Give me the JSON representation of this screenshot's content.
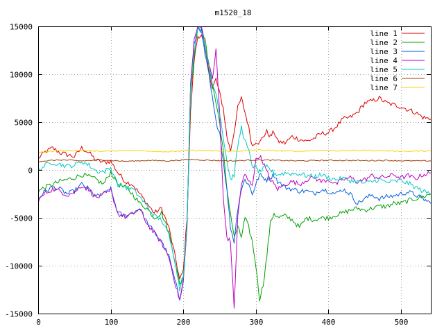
{
  "chart_data": {
    "type": "line",
    "title": "m1520_18",
    "xlabel": "",
    "ylabel": "",
    "xlim": [
      0,
      541
    ],
    "ylim": [
      -15000,
      15000
    ],
    "xticks": [
      0,
      100,
      200,
      300,
      400,
      500
    ],
    "yticks": [
      -15000,
      -10000,
      -5000,
      0,
      5000,
      10000,
      15000
    ],
    "grid": true,
    "legend_position": "top-right",
    "series": [
      {
        "name": "line 1",
        "color": "#dd0000",
        "x": [
          0,
          10,
          20,
          30,
          40,
          50,
          60,
          70,
          80,
          90,
          100,
          110,
          120,
          130,
          140,
          150,
          160,
          170,
          180,
          190,
          195,
          200,
          205,
          210,
          215,
          220,
          225,
          230,
          235,
          240,
          245,
          250,
          255,
          260,
          265,
          270,
          275,
          280,
          285,
          290,
          295,
          300,
          305,
          310,
          315,
          320,
          325,
          330,
          340,
          350,
          360,
          370,
          380,
          390,
          400,
          410,
          420,
          430,
          440,
          450,
          460,
          470,
          480,
          490,
          500,
          510,
          520,
          530,
          541
        ],
        "y": [
          1200,
          1900,
          2300,
          1800,
          1600,
          1400,
          2300,
          1800,
          1000,
          800,
          900,
          -300,
          -1200,
          -1500,
          -2500,
          -3500,
          -4500,
          -4000,
          -6000,
          -9500,
          -11500,
          -10500,
          -5000,
          6000,
          11500,
          14000,
          14000,
          12500,
          10500,
          8500,
          9500,
          8000,
          6500,
          3500,
          2000,
          4000,
          6500,
          7500,
          6000,
          4500,
          2500,
          3000,
          2800,
          3500,
          4000,
          3500,
          4000,
          3000,
          2800,
          3500,
          3200,
          3000,
          3300,
          3800,
          3900,
          4500,
          5300,
          5500,
          6000,
          7000,
          7200,
          7500,
          7000,
          6800,
          6600,
          6300,
          6000,
          5500,
          5300
        ]
      },
      {
        "name": "line 2",
        "color": "#00a000",
        "x": [
          0,
          10,
          20,
          30,
          40,
          50,
          60,
          70,
          80,
          90,
          100,
          110,
          120,
          130,
          140,
          150,
          160,
          170,
          180,
          190,
          195,
          200,
          205,
          210,
          215,
          220,
          225,
          230,
          235,
          240,
          245,
          250,
          255,
          260,
          265,
          270,
          275,
          280,
          285,
          290,
          295,
          300,
          305,
          310,
          315,
          320,
          325,
          330,
          340,
          350,
          360,
          370,
          380,
          390,
          400,
          410,
          420,
          430,
          440,
          450,
          460,
          470,
          480,
          490,
          500,
          510,
          520,
          530,
          541
        ],
        "y": [
          -2200,
          -1800,
          -1500,
          -1200,
          -1000,
          -800,
          -500,
          -700,
          -1000,
          -1500,
          -200,
          -1500,
          -1800,
          -2500,
          -3500,
          -4000,
          -5000,
          -4500,
          -6500,
          -10000,
          -12000,
          -11000,
          -6000,
          8000,
          12000,
          15000,
          15000,
          13500,
          11000,
          9000,
          7000,
          5000,
          2000,
          -2000,
          -4500,
          -7000,
          -6000,
          -7000,
          -5000,
          -6000,
          -7500,
          -10000,
          -13500,
          -12000,
          -9000,
          -5500,
          -4500,
          -5000,
          -4800,
          -5200,
          -6000,
          -5000,
          -5200,
          -5000,
          -5000,
          -4700,
          -4500,
          -4200,
          -4000,
          -4200,
          -4000,
          -3800,
          -3800,
          -3500,
          -3500,
          -3200,
          -3000,
          -2800,
          -2500
        ]
      },
      {
        "name": "line 3",
        "color": "#0060dd",
        "x": [
          0,
          10,
          20,
          30,
          40,
          50,
          60,
          70,
          80,
          90,
          100,
          110,
          120,
          130,
          140,
          150,
          160,
          170,
          180,
          190,
          195,
          200,
          205,
          210,
          215,
          220,
          225,
          230,
          235,
          240,
          245,
          250,
          255,
          260,
          265,
          270,
          275,
          280,
          285,
          290,
          295,
          300,
          305,
          310,
          315,
          320,
          325,
          330,
          340,
          350,
          360,
          370,
          380,
          390,
          400,
          410,
          420,
          430,
          440,
          450,
          460,
          470,
          480,
          490,
          500,
          510,
          520,
          530,
          541
        ],
        "y": [
          -3000,
          -2200,
          -1800,
          -2000,
          -2500,
          -2200,
          -1500,
          -2000,
          -2800,
          -2500,
          -2000,
          -4500,
          -4800,
          -4500,
          -4000,
          -5500,
          -6500,
          -7500,
          -9000,
          -12000,
          -13500,
          -11500,
          -6000,
          9000,
          13000,
          15000,
          14500,
          12000,
          10000,
          7500,
          5000,
          4000,
          1000,
          -2000,
          -6000,
          -7500,
          -4000,
          -2000,
          -1000,
          -1500,
          -2500,
          -1500,
          -500,
          -800,
          -1000,
          -800,
          -500,
          -1200,
          -1800,
          -2000,
          -2200,
          -2200,
          -2500,
          -2000,
          -2200,
          -2500,
          -2000,
          -2500,
          -3500,
          -3000,
          -2600,
          -3000,
          -2800,
          -2700,
          -2500,
          -2300,
          -2600,
          -3000,
          -3500
        ]
      },
      {
        "name": "line 4",
        "color": "#c000c0",
        "x": [
          0,
          10,
          20,
          30,
          40,
          50,
          60,
          70,
          80,
          90,
          100,
          110,
          120,
          130,
          140,
          150,
          160,
          170,
          180,
          190,
          195,
          200,
          205,
          210,
          215,
          220,
          225,
          230,
          235,
          240,
          245,
          250,
          255,
          260,
          265,
          270,
          275,
          280,
          285,
          290,
          295,
          300,
          305,
          310,
          315,
          320,
          325,
          330,
          340,
          350,
          360,
          370,
          380,
          390,
          400,
          410,
          420,
          430,
          440,
          450,
          460,
          470,
          480,
          490,
          500,
          510,
          520,
          530,
          541
        ],
        "y": [
          -3200,
          -2400,
          -2000,
          -2200,
          -2600,
          -2300,
          -1600,
          -2100,
          -2900,
          -2600,
          -2100,
          -4600,
          -4900,
          -4600,
          -4100,
          -5600,
          -6600,
          -7600,
          -9100,
          -12200,
          -13600,
          -11600,
          -6200,
          9000,
          13500,
          15000,
          15000,
          13000,
          11000,
          9500,
          12500,
          6000,
          -3000,
          -7000,
          -7500,
          -14500,
          -5000,
          -1500,
          -500,
          -1200,
          -1500,
          1000,
          1500,
          800,
          -200,
          -1000,
          -1500,
          -2000,
          -1500,
          -1200,
          -1500,
          -1000,
          -800,
          -1200,
          -1000,
          -1500,
          -1000,
          -800,
          -1200,
          -1000,
          -600,
          -800,
          -700,
          -500,
          -800,
          -600,
          -900,
          -500,
          -300
        ]
      },
      {
        "name": "line 5",
        "color": "#00c8c8",
        "x": [
          0,
          10,
          20,
          30,
          40,
          50,
          60,
          70,
          80,
          90,
          100,
          110,
          120,
          130,
          140,
          150,
          160,
          170,
          180,
          190,
          195,
          200,
          205,
          210,
          215,
          220,
          225,
          230,
          235,
          240,
          245,
          250,
          255,
          260,
          265,
          270,
          275,
          280,
          285,
          290,
          295,
          300,
          305,
          310,
          315,
          320,
          325,
          330,
          340,
          350,
          360,
          370,
          380,
          390,
          400,
          410,
          420,
          430,
          440,
          450,
          460,
          470,
          480,
          490,
          500,
          510,
          520,
          530,
          541
        ],
        "y": [
          0,
          500,
          800,
          600,
          400,
          500,
          900,
          500,
          -100,
          -200,
          200,
          -1500,
          -1800,
          -2000,
          -2800,
          -3800,
          -4800,
          -5200,
          -6800,
          -10000,
          -12500,
          -11000,
          -6000,
          8500,
          12500,
          15000,
          14500,
          13000,
          11000,
          9000,
          8000,
          6000,
          3500,
          1000,
          -1000,
          -500,
          2500,
          4500,
          3000,
          2000,
          500,
          200,
          -200,
          100,
          300,
          0,
          -300,
          -500,
          -300,
          -400,
          -400,
          -600,
          -700,
          -500,
          -800,
          -1000,
          -900,
          -1100,
          -1200,
          -1400,
          -1200,
          -1000,
          -1300,
          -1200,
          -1100,
          -1400,
          -1800,
          -2200,
          -2500
        ]
      },
      {
        "name": "line 6",
        "color": "#a0400a",
        "x": [
          0,
          30,
          60,
          90,
          120,
          150,
          180,
          210,
          240,
          270,
          300,
          330,
          360,
          390,
          420,
          450,
          480,
          510,
          541
        ],
        "y": [
          900,
          1050,
          950,
          1050,
          900,
          1000,
          950,
          1100,
          1000,
          950,
          1050,
          1000,
          950,
          1000,
          1000,
          980,
          1000,
          950,
          950
        ]
      },
      {
        "name": "line 7",
        "color": "#ffd000",
        "x": [
          0,
          30,
          60,
          90,
          120,
          150,
          180,
          210,
          240,
          270,
          300,
          330,
          360,
          390,
          420,
          450,
          480,
          510,
          541
        ],
        "y": [
          1850,
          2000,
          2050,
          1950,
          2050,
          2000,
          1900,
          2050,
          2000,
          1950,
          2100,
          2000,
          1950,
          2050,
          2000,
          2050,
          2000,
          1950,
          2000
        ]
      }
    ]
  }
}
